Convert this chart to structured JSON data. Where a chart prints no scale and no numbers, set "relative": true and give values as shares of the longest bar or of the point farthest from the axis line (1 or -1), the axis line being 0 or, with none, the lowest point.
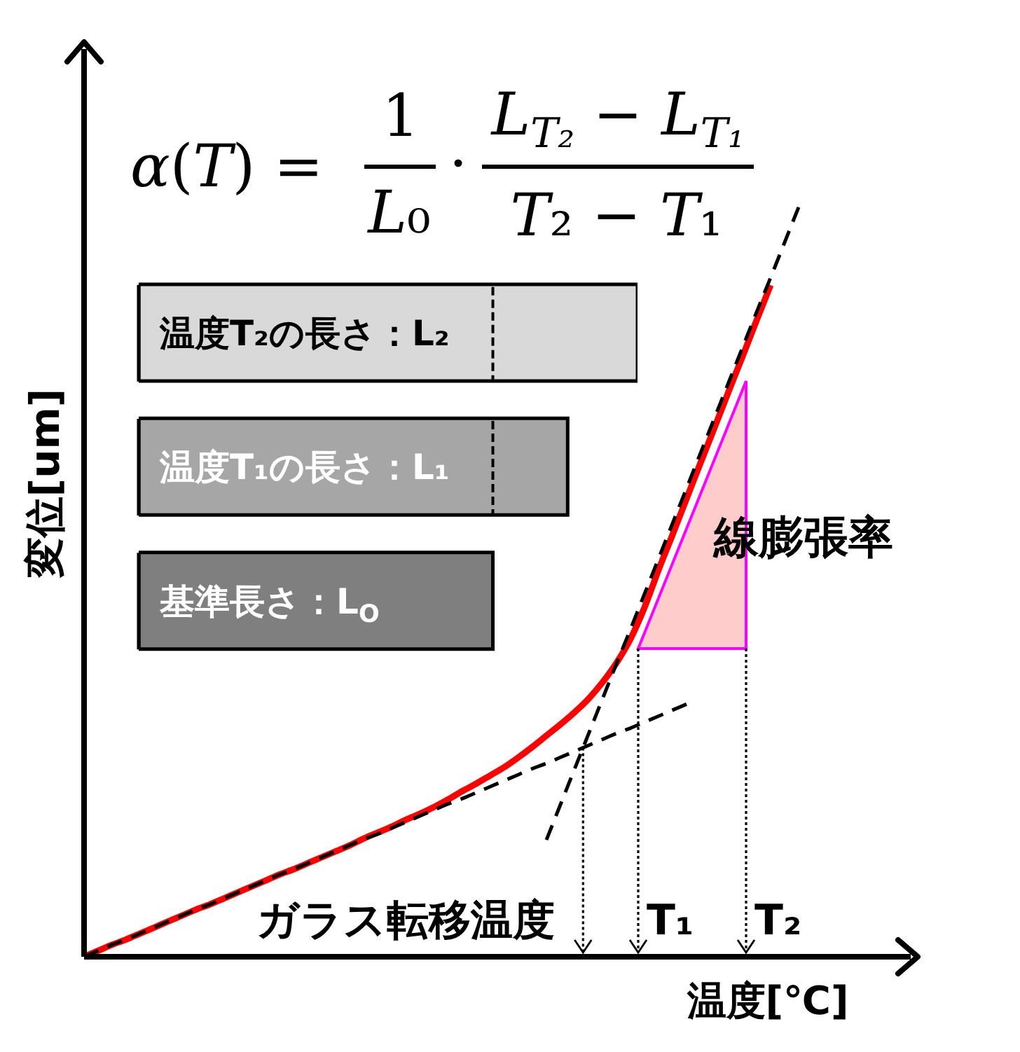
{
  "chart_data": [
    {
      "type": "line",
      "xlabel": "温度[℃]",
      "ylabel": "変位[um]",
      "relative": true,
      "marker": "none",
      "line_style": "solid",
      "categories": [
        null,
        null,
        null,
        null,
        null,
        null,
        null,
        null,
        null,
        null,
        null,
        null,
        null,
        null,
        null,
        null,
        null,
        null,
        null,
        null,
        null,
        null,
        null,
        null,
        null,
        null,
        null,
        null,
        null,
        null,
        null,
        null,
        null,
        null,
        null,
        null,
        null,
        null,
        null,
        null,
        null,
        null,
        null,
        null,
        null,
        null,
        null,
        null,
        null,
        null,
        null,
        null,
        null,
        null,
        null,
        null,
        null,
        null,
        null,
        null
      ],
      "series": [
        {
          "color": "#ff0000",
          "values": [
            0,
            0.008,
            0.016,
            0.023,
            0.031,
            0.039,
            0.047,
            0.055,
            0.063,
            0.07,
            0.078,
            0.086,
            0.094,
            0.102,
            0.11,
            0.117,
            0.125,
            0.133,
            0.141,
            0.149,
            0.158,
            0.166,
            0.174,
            0.183,
            0.191,
            0.2,
            0.21,
            0.221,
            0.231,
            0.242,
            0.253,
            0.266,
            0.28,
            0.295,
            0.31,
            0.326,
            0.344,
            0.366,
            0.392,
            0.424,
            0.466,
            0.516,
            0.563,
            0.611,
            0.659,
            0.706,
            0.754,
            0.801,
            0.849,
            0.896,
            null,
            null,
            null,
            null,
            null,
            null,
            null,
            null,
            null,
            null
          ]
        },
        {
          "color": "#000000",
          "line_style": "dashed",
          "values": [
            0,
            0.008,
            0.016,
            0.023,
            0.031,
            0.039,
            0.047,
            0.055,
            0.063,
            0.07,
            0.078,
            0.086,
            0.094,
            0.102,
            0.11,
            0.117,
            0.125,
            0.133,
            0.141,
            0.149,
            0.157,
            0.164,
            0.172,
            0.18,
            0.188,
            0.196,
            0.204,
            0.211,
            0.219,
            0.227,
            0.235,
            0.243,
            0.251,
            0.258,
            0.266,
            0.274,
            0.282,
            0.29,
            0.298,
            0.305,
            0.313,
            0.321,
            0.329,
            0.337,
            null,
            null,
            null,
            null,
            null,
            null,
            null,
            null,
            null,
            null,
            null,
            null,
            null,
            null,
            null,
            null
          ]
        },
        {
          "color": "#000000",
          "line_style": "dashed",
          "values": [
            null,
            null,
            null,
            null,
            null,
            null,
            null,
            null,
            null,
            null,
            null,
            null,
            null,
            null,
            null,
            null,
            null,
            null,
            null,
            null,
            null,
            null,
            null,
            null,
            null,
            null,
            null,
            null,
            null,
            null,
            null,
            null,
            null,
            0.156,
            0.203,
            0.25,
            0.297,
            0.344,
            0.391,
            0.437,
            0.484,
            0.531,
            0.578,
            0.625,
            0.672,
            0.719,
            0.766,
            0.813,
            0.86,
            0.906,
            0.953,
            1,
            null,
            null,
            null,
            null,
            null,
            null,
            null,
            null
          ]
        }
      ],
      "annotations": [
        "α(T) =",
        "1",
        "L₀",
        "·",
        "L$_{T₂}$ − L$_{T₁}$",
        "T₂ − T₁",
        "線膨張率",
        "ガラス転移温度",
        "T₁",
        "T₂"
      ]
    },
    {
      "type": "bar",
      "orientation": "horizontal",
      "relative": true,
      "categories": [
        "温度T₂の長さ：L₂",
        "温度T₁の長さ：L₁",
        "基準長さ：L$_{O}$"
      ],
      "values": [
        1,
        0.86,
        0.71
      ],
      "colors": [
        "#d9d9d9",
        "#a6a6a6",
        "#7f7f7f"
      ],
      "ref_lines": [
        {
          "axis": "x",
          "value": 0.71,
          "color": "#000000",
          "line_style": "dashed"
        }
      ]
    }
  ]
}
